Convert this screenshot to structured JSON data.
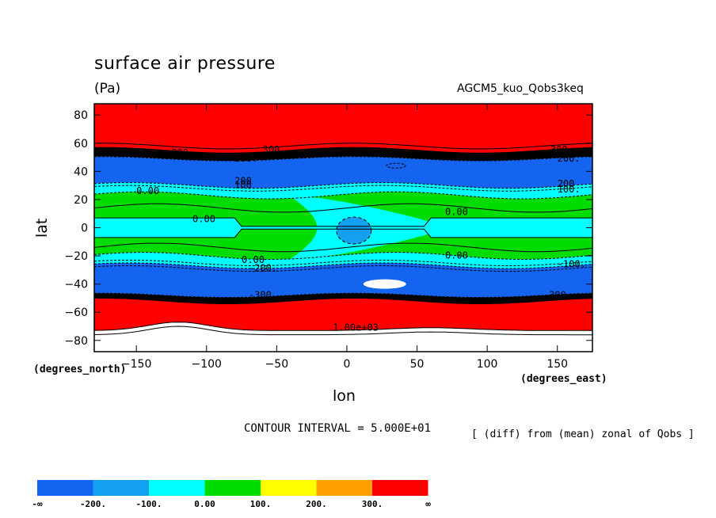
{
  "chart_data": {
    "type": "heatmap",
    "title": "surface air pressure",
    "units": "(Pa)",
    "run_label": "AGCM5_kuo_Qobs3keq",
    "xlabel": "lon",
    "ylabel": "lat",
    "x_units": "(degrees_east)",
    "y_units": "(degrees_north)",
    "xlim": [
      -180,
      175
    ],
    "ylim": [
      -88,
      88
    ],
    "x_ticks": [
      -150,
      -100,
      -50,
      0,
      50,
      100,
      150
    ],
    "y_ticks": [
      80,
      60,
      40,
      20,
      0,
      -20,
      -40,
      -60,
      -80
    ],
    "contour_interval_text": "CONTOUR INTERVAL = 5.000E+01",
    "note": "[ (diff) from (mean) zonal of Qobs ]",
    "contour_labels": [
      "300",
      "200.",
      "200",
      "100.",
      "0.00",
      "-200.",
      "-100",
      "-300",
      "1.00e+03"
    ],
    "colorbar": {
      "colors": [
        "#1464f0",
        "#14a0f0",
        "#00ffff",
        "#00dc00",
        "#ffff00",
        "#ffa000",
        "#ff0000"
      ],
      "labels": [
        "-∞",
        "-200.",
        "-100.",
        "0.00",
        "100.",
        "200.",
        "300.",
        "∞"
      ]
    },
    "bands": [
      {
        "lat_range": [
          -88,
          -73
        ],
        "level": "above 1000 (white, ~1.00e+03 contour)",
        "color": "#ffffff"
      },
      {
        "lat_range": [
          -73,
          -52
        ],
        "level": ">300",
        "color": "#ff0000"
      },
      {
        "lat_range": [
          -52,
          -48
        ],
        "level": "steep gradient (black dashed contours)",
        "color": "#000000"
      },
      {
        "lat_range": [
          -48,
          -27
        ],
        "level": "< -200",
        "color": "#1464f0"
      },
      {
        "lat_range": [
          -27,
          -20
        ],
        "level": "-100 to 0",
        "color": "#00ffff"
      },
      {
        "lat_range": [
          -20,
          -7
        ],
        "level": "0 to 100",
        "color": "#00dc00"
      },
      {
        "lat_range": [
          -7,
          7
        ],
        "level": "-100 to 0",
        "color": "#00ffff"
      },
      {
        "lat_range": [
          7,
          23
        ],
        "level": "0 to 100",
        "color": "#00dc00"
      },
      {
        "lat_range": [
          23,
          30
        ],
        "level": "-100 to 0",
        "color": "#00ffff"
      },
      {
        "lat_range": [
          30,
          49
        ],
        "level": "< -200",
        "color": "#1464f0"
      },
      {
        "lat_range": [
          49,
          55
        ],
        "level": "steep gradient (black contours)",
        "color": "#000000"
      },
      {
        "lat_range": [
          55,
          88
        ],
        "level": ">300",
        "color": "#ff0000"
      }
    ]
  }
}
